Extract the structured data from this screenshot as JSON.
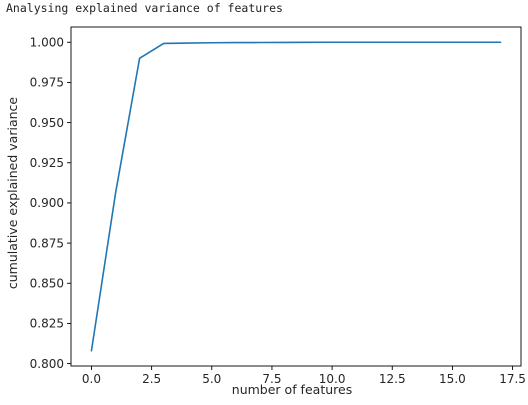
{
  "output": {
    "caption": "Analysing explained variance of features"
  },
  "chart_data": {
    "type": "line",
    "title": "",
    "xlabel": "number of features",
    "ylabel": "cumulative explained variance",
    "xlim": [
      -0.85,
      17.85
    ],
    "ylim": [
      0.7985,
      1.0095
    ],
    "xticks": [
      0.0,
      2.5,
      5.0,
      7.5,
      10.0,
      12.5,
      15.0,
      17.5
    ],
    "xtick_labels": [
      "0.0",
      "2.5",
      "5.0",
      "7.5",
      "10.0",
      "12.5",
      "15.0",
      "17.5"
    ],
    "yticks": [
      0.8,
      0.825,
      0.85,
      0.875,
      0.9,
      0.925,
      0.95,
      0.975,
      1.0
    ],
    "ytick_labels": [
      "0.800",
      "0.825",
      "0.850",
      "0.875",
      "0.900",
      "0.925",
      "0.950",
      "0.975",
      "1.000"
    ],
    "grid": false,
    "series": [
      {
        "color": "#1f77b4",
        "x": [
          0,
          1,
          2,
          3,
          4,
          5,
          6,
          7,
          8,
          9,
          10,
          11,
          12,
          13,
          14,
          15,
          16,
          17
        ],
        "y": [
          0.808,
          0.906,
          0.99,
          0.9993,
          0.9995,
          0.9997,
          0.9998,
          0.99985,
          0.9999,
          0.99995,
          1.0,
          1.0,
          1.0,
          1.0,
          1.0,
          1.0,
          1.0,
          1.0
        ]
      }
    ]
  }
}
